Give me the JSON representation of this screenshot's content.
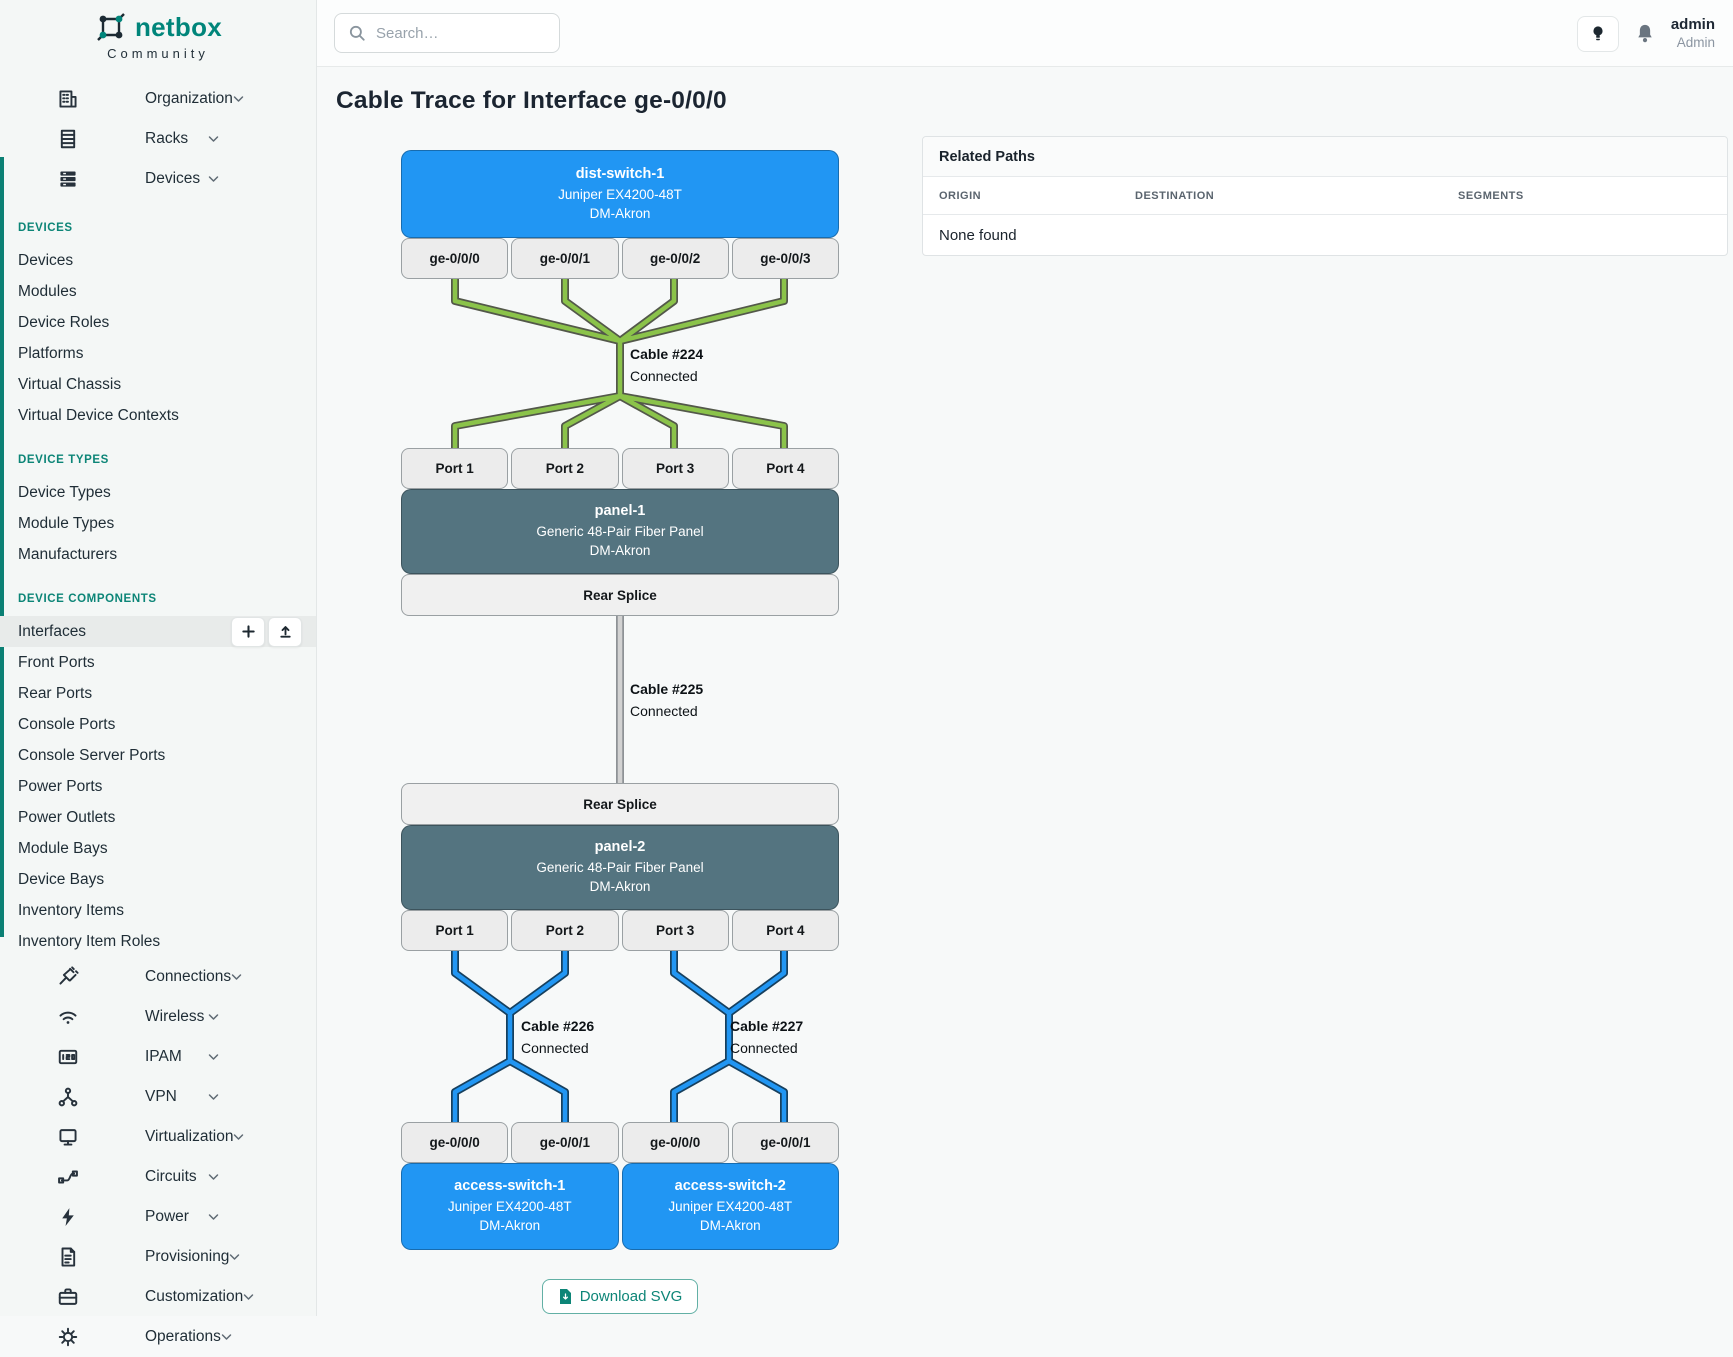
{
  "brand": {
    "name": "netbox",
    "subtitle": "Community"
  },
  "header": {
    "search_placeholder": "Search…",
    "user_name": "admin",
    "user_role": "Admin"
  },
  "page": {
    "title": "Cable Trace for Interface ge-0/0/0"
  },
  "sidebar": {
    "items": [
      {
        "type": "top",
        "icon": "building-icon",
        "label": "Organization"
      },
      {
        "type": "top",
        "icon": "rack-icon",
        "label": "Racks"
      },
      {
        "type": "top",
        "icon": "server-stack-icon",
        "label": "Devices"
      },
      {
        "type": "heading",
        "label": "DEVICES"
      },
      {
        "type": "sub",
        "label": "Devices"
      },
      {
        "type": "sub",
        "label": "Modules"
      },
      {
        "type": "sub",
        "label": "Device Roles"
      },
      {
        "type": "sub",
        "label": "Platforms"
      },
      {
        "type": "sub",
        "label": "Virtual Chassis"
      },
      {
        "type": "sub",
        "label": "Virtual Device Contexts"
      },
      {
        "type": "heading",
        "label": "DEVICE TYPES"
      },
      {
        "type": "sub",
        "label": "Device Types"
      },
      {
        "type": "sub",
        "label": "Module Types"
      },
      {
        "type": "sub",
        "label": "Manufacturers"
      },
      {
        "type": "heading",
        "label": "DEVICE COMPONENTS"
      },
      {
        "type": "sub",
        "label": "Interfaces",
        "active": true,
        "actions": [
          "plus-icon",
          "upload-icon"
        ]
      },
      {
        "type": "sub",
        "label": "Front Ports"
      },
      {
        "type": "sub",
        "label": "Rear Ports"
      },
      {
        "type": "sub",
        "label": "Console Ports"
      },
      {
        "type": "sub",
        "label": "Console Server Ports"
      },
      {
        "type": "sub",
        "label": "Power Ports"
      },
      {
        "type": "sub",
        "label": "Power Outlets"
      },
      {
        "type": "sub",
        "label": "Module Bays"
      },
      {
        "type": "sub",
        "label": "Device Bays"
      },
      {
        "type": "sub",
        "label": "Inventory Items"
      },
      {
        "type": "sub",
        "label": "Inventory Item Roles"
      },
      {
        "type": "top",
        "icon": "plug-icon",
        "label": "Connections"
      },
      {
        "type": "top",
        "icon": "wifi-icon",
        "label": "Wireless"
      },
      {
        "type": "top",
        "icon": "ipam-icon",
        "label": "IPAM"
      },
      {
        "type": "top",
        "icon": "vpn-icon",
        "label": "VPN"
      },
      {
        "type": "top",
        "icon": "monitor-icon",
        "label": "Virtualization"
      },
      {
        "type": "top",
        "icon": "circuit-icon",
        "label": "Circuits"
      },
      {
        "type": "top",
        "icon": "bolt-icon",
        "label": "Power"
      },
      {
        "type": "top",
        "icon": "document-icon",
        "label": "Provisioning"
      },
      {
        "type": "top",
        "icon": "briefcase-icon",
        "label": "Customization"
      },
      {
        "type": "top",
        "icon": "gear-icon",
        "label": "Operations"
      }
    ]
  },
  "related_paths": {
    "title": "Related Paths",
    "columns": [
      "ORIGIN",
      "DESTINATION",
      "SEGMENTS"
    ],
    "empty": "None found"
  },
  "diagram": {
    "nodes": {
      "dist_switch": {
        "name": "dist-switch-1",
        "model": "Juniper EX4200-48T",
        "site": "DM-Akron"
      },
      "panel1": {
        "name": "panel-1",
        "model": "Generic 48-Pair Fiber Panel",
        "site": "DM-Akron"
      },
      "panel2": {
        "name": "panel-2",
        "model": "Generic 48-Pair Fiber Panel",
        "site": "DM-Akron"
      },
      "access1": {
        "name": "access-switch-1",
        "model": "Juniper EX4200-48T",
        "site": "DM-Akron"
      },
      "access2": {
        "name": "access-switch-2",
        "model": "Juniper EX4200-48T",
        "site": "DM-Akron"
      }
    },
    "interface_ports": [
      "ge-0/0/0",
      "ge-0/0/1",
      "ge-0/0/2",
      "ge-0/0/3"
    ],
    "panel_ports": [
      "Port 1",
      "Port 2",
      "Port 3",
      "Port 4"
    ],
    "splice_label": "Rear Splice",
    "bottom_ports": [
      "ge-0/0/0",
      "ge-0/0/1",
      "ge-0/0/0",
      "ge-0/0/1"
    ],
    "cables": {
      "c224": {
        "label": "Cable #224",
        "status": "Connected"
      },
      "c225": {
        "label": "Cable #225",
        "status": "Connected"
      },
      "c226": {
        "label": "Cable #226",
        "status": "Connected"
      },
      "c227": {
        "label": "Cable #227",
        "status": "Connected"
      }
    },
    "download_label": "Download SVG"
  },
  "colors": {
    "accent_teal": "#00857a",
    "device_blue": "#2196f3",
    "panel_slate": "#547480",
    "cable_green": "#8bc34a",
    "cable_green_outline": "#53584a",
    "cable_blue": "#2196f3",
    "cable_blue_outline": "#17405e",
    "cable_gray": "#d2d2d2",
    "cable_gray_outline": "#8e9296"
  }
}
